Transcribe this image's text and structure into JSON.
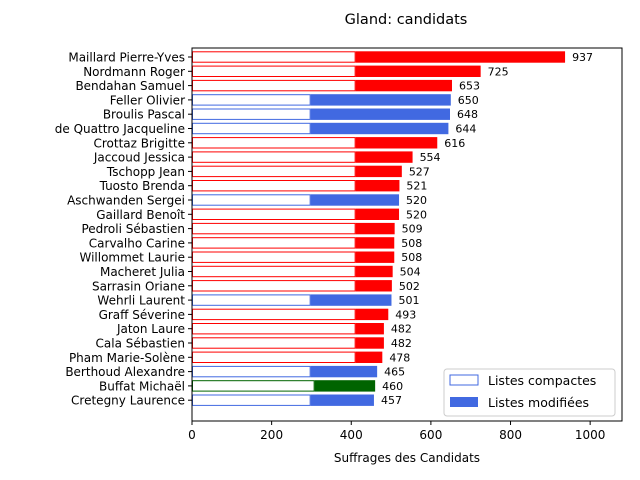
{
  "chart_data": {
    "type": "bar",
    "orientation": "horizontal",
    "title": "Gland: candidats",
    "xlabel": "Suffrages des Candidats",
    "ylabel": "",
    "xlim": [
      0,
      1080
    ],
    "xticks": [
      0,
      200,
      400,
      600,
      800,
      1000
    ],
    "legend_position": "bottom-right",
    "legend": {
      "compact_label": "Listes compactes",
      "modified_label": "Listes modifiées"
    },
    "party_colors": {
      "red": "#ff0000",
      "blue": "#4169e1",
      "green": "#006400"
    },
    "candidates": [
      {
        "name": "Maillard Pierre-Yves",
        "total": 937,
        "compact": 411,
        "party": "red"
      },
      {
        "name": "Nordmann Roger",
        "total": 725,
        "compact": 411,
        "party": "red"
      },
      {
        "name": "Bendahan Samuel",
        "total": 653,
        "compact": 411,
        "party": "red"
      },
      {
        "name": "Feller Olivier",
        "total": 650,
        "compact": 298,
        "party": "blue"
      },
      {
        "name": "Broulis Pascal",
        "total": 648,
        "compact": 298,
        "party": "blue"
      },
      {
        "name": "de Quattro Jacqueline",
        "total": 644,
        "compact": 298,
        "party": "blue"
      },
      {
        "name": "Crottaz Brigitte",
        "total": 616,
        "compact": 411,
        "party": "red"
      },
      {
        "name": "Jaccoud Jessica",
        "total": 554,
        "compact": 411,
        "party": "red"
      },
      {
        "name": "Tschopp Jean",
        "total": 527,
        "compact": 411,
        "party": "red"
      },
      {
        "name": "Tuosto Brenda",
        "total": 521,
        "compact": 411,
        "party": "red"
      },
      {
        "name": "Aschwanden Sergei",
        "total": 520,
        "compact": 298,
        "party": "blue"
      },
      {
        "name": "Gaillard Benoît",
        "total": 520,
        "compact": 411,
        "party": "red"
      },
      {
        "name": "Pedroli Sébastien",
        "total": 509,
        "compact": 411,
        "party": "red"
      },
      {
        "name": "Carvalho Carine",
        "total": 508,
        "compact": 411,
        "party": "red"
      },
      {
        "name": "Willommet Laurie",
        "total": 508,
        "compact": 411,
        "party": "red"
      },
      {
        "name": "Macheret Julia",
        "total": 504,
        "compact": 411,
        "party": "red"
      },
      {
        "name": "Sarrasin Oriane",
        "total": 502,
        "compact": 411,
        "party": "red"
      },
      {
        "name": "Wehrli Laurent",
        "total": 501,
        "compact": 298,
        "party": "blue"
      },
      {
        "name": "Graff Séverine",
        "total": 493,
        "compact": 411,
        "party": "red"
      },
      {
        "name": "Jaton Laure",
        "total": 482,
        "compact": 411,
        "party": "red"
      },
      {
        "name": "Cala Sébastien",
        "total": 482,
        "compact": 411,
        "party": "red"
      },
      {
        "name": "Pham Marie-Solène",
        "total": 478,
        "compact": 411,
        "party": "red"
      },
      {
        "name": "Berthoud Alexandre",
        "total": 465,
        "compact": 298,
        "party": "blue"
      },
      {
        "name": "Buffat Michaël",
        "total": 460,
        "compact": 308,
        "party": "green"
      },
      {
        "name": "Cretegny Laurence",
        "total": 457,
        "compact": 298,
        "party": "blue"
      }
    ]
  }
}
